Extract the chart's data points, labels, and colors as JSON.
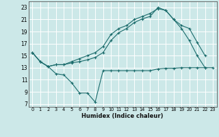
{
  "xlabel": "Humidex (Indice chaleur)",
  "bg_color": "#cce8e8",
  "grid_color": "#ffffff",
  "line_color": "#1a6b6b",
  "xlim": [
    -0.5,
    23.5
  ],
  "ylim": [
    6.5,
    24.0
  ],
  "xticks": [
    0,
    1,
    2,
    3,
    4,
    5,
    6,
    7,
    8,
    9,
    10,
    11,
    12,
    13,
    14,
    15,
    16,
    17,
    18,
    19,
    20,
    21,
    22,
    23
  ],
  "yticks": [
    7,
    9,
    11,
    13,
    15,
    17,
    19,
    21,
    23
  ],
  "line1_x": [
    0,
    1,
    2,
    3,
    4,
    5,
    6,
    7,
    8,
    9,
    10,
    11,
    12,
    13,
    14,
    15,
    16,
    17,
    18,
    19,
    20,
    21,
    22,
    23
  ],
  "line1_y": [
    15.5,
    14.0,
    13.2,
    12.0,
    11.8,
    10.5,
    8.8,
    8.8,
    7.3,
    12.5,
    12.5,
    12.5,
    12.5,
    12.5,
    12.5,
    12.5,
    12.8,
    12.9,
    12.9,
    13.0,
    13.0,
    13.0,
    13.0,
    13.0
  ],
  "line2_x": [
    0,
    1,
    2,
    3,
    4,
    5,
    6,
    7,
    8,
    9,
    10,
    11,
    12,
    13,
    14,
    15,
    16,
    17,
    18,
    19,
    20,
    21,
    22
  ],
  "line2_y": [
    15.5,
    14.0,
    13.2,
    13.5,
    13.5,
    13.8,
    14.0,
    14.3,
    14.7,
    15.5,
    17.5,
    18.8,
    19.5,
    20.5,
    21.1,
    21.5,
    23.0,
    22.5,
    21.0,
    19.5,
    17.5,
    15.0,
    13.0
  ],
  "line3_x": [
    0,
    1,
    2,
    3,
    4,
    5,
    6,
    7,
    8,
    9,
    10,
    11,
    12,
    13,
    14,
    15,
    16,
    17,
    18,
    19,
    20,
    21,
    22
  ],
  "line3_y": [
    15.5,
    14.0,
    13.2,
    13.5,
    13.5,
    14.0,
    14.5,
    15.0,
    15.5,
    16.5,
    18.5,
    19.5,
    20.0,
    21.0,
    21.5,
    22.0,
    22.8,
    22.5,
    21.0,
    20.0,
    19.5,
    17.2,
    15.0
  ]
}
